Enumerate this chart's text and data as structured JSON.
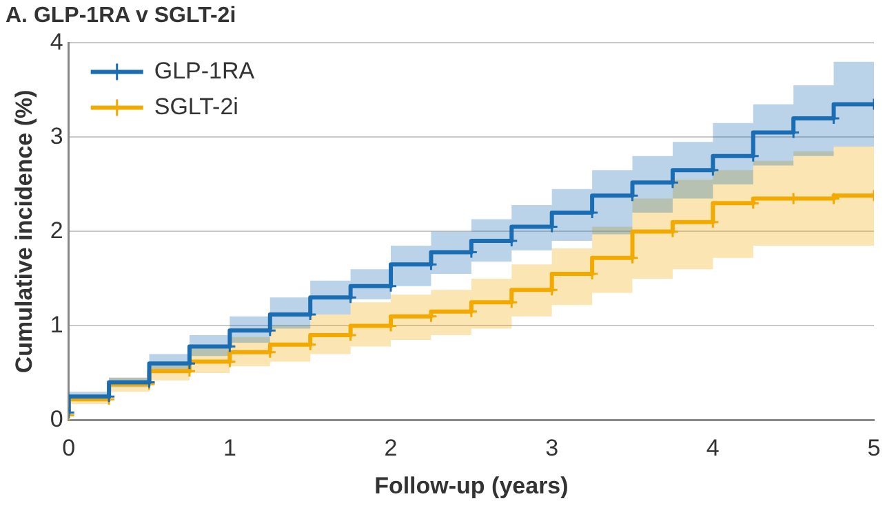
{
  "chart_data": {
    "type": "step",
    "title": "A. GLP-1RA v SGLT-2i",
    "xlabel": "Follow-up (years)",
    "ylabel": "Cumulative incidence (%)",
    "x": [
      0,
      0.25,
      0.5,
      0.75,
      1,
      1.25,
      1.5,
      1.75,
      2,
      2.25,
      2.5,
      2.75,
      3,
      3.25,
      3.5,
      3.75,
      4,
      4.25,
      4.5,
      4.75,
      5
    ],
    "series": [
      {
        "name": "GLP-1RA",
        "color": "#1a6db3",
        "values": [
          0.08,
          0.25,
          0.4,
          0.6,
          0.78,
          0.95,
          1.12,
          1.3,
          1.42,
          1.65,
          1.78,
          1.9,
          2.05,
          2.2,
          2.38,
          2.52,
          2.65,
          2.8,
          3.05,
          3.2,
          3.35
        ],
        "lower": [
          0.05,
          0.2,
          0.35,
          0.5,
          0.68,
          0.82,
          0.97,
          1.12,
          1.28,
          1.42,
          1.55,
          1.68,
          1.8,
          1.9,
          1.97,
          2.2,
          2.35,
          2.5,
          2.7,
          2.8,
          2.9
        ],
        "upper": [
          0.12,
          0.3,
          0.45,
          0.7,
          0.9,
          1.1,
          1.3,
          1.48,
          1.6,
          1.85,
          2.0,
          2.13,
          2.28,
          2.45,
          2.65,
          2.8,
          2.95,
          3.15,
          3.35,
          3.55,
          3.8
        ]
      },
      {
        "name": "SGLT-2i",
        "color": "#f2a900",
        "values": [
          0.05,
          0.22,
          0.38,
          0.52,
          0.62,
          0.72,
          0.8,
          0.9,
          1.0,
          1.1,
          1.15,
          1.25,
          1.38,
          1.55,
          1.72,
          2.0,
          2.1,
          2.3,
          2.35,
          2.35,
          2.38
        ],
        "lower": [
          0.02,
          0.17,
          0.3,
          0.42,
          0.5,
          0.57,
          0.62,
          0.7,
          0.78,
          0.85,
          0.9,
          0.97,
          1.1,
          1.22,
          1.35,
          1.5,
          1.6,
          1.72,
          1.85,
          1.85,
          1.85
        ],
        "upper": [
          0.08,
          0.27,
          0.45,
          0.62,
          0.78,
          0.88,
          1.0,
          1.12,
          1.25,
          1.33,
          1.38,
          1.5,
          1.65,
          1.82,
          2.05,
          2.35,
          2.55,
          2.65,
          2.75,
          2.85,
          2.9
        ]
      }
    ],
    "xlim": [
      0,
      5
    ],
    "xticks": [
      0,
      1,
      2,
      3,
      4,
      5
    ],
    "ylim": [
      0,
      4
    ],
    "yticks": [
      0,
      1,
      2,
      3,
      4
    ],
    "grid": "y",
    "legend": "top left",
    "marker": "cross",
    "line_style": "solid"
  }
}
